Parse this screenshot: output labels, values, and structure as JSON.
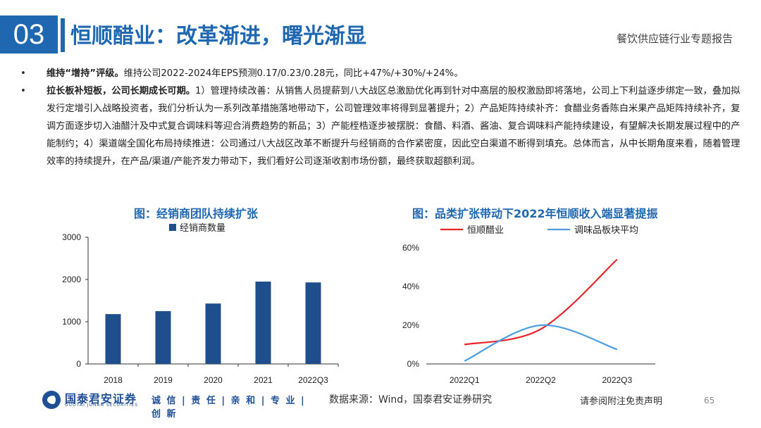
{
  "header": {
    "section_number": "03",
    "title": "恒顺醋业：改革渐进，曙光渐显",
    "report_name": "餐饮供应链行业专题报告"
  },
  "bullets": [
    {
      "lead": "维持“增持”评级。",
      "text": "维持公司2022-2024年EPS预测0.17/0.23/0.28元，同比+47%/+30%/+24%。"
    },
    {
      "lead": "拉长板补短板，公司长期成长可期。",
      "text": "1）管理持续改善：从销售人员提薪到八大战区总激励优化再到针对中高层的股权激励即将落地，公司上下利益逐步绑定一致，叠加拟发行定增引入战略投资者，我们分析认为一系列改革措施落地带动下，公司管理效率将得到显著提升；2）产品矩阵持续补齐：食醋业务香陈白米果产品矩阵持续补齐，复调方面逐步切入油醋汁及中式复合调味料等迎合消费趋势的新品；3）产能桎梏逐步被摆脱：食醋、料酒、酱油、复合调味料产能持续建设，有望解决长期发展过程中的产能制约；4）渠道端全国化布局持续推进：公司通过八大战区改革不断提升与经销商的合作紧密度，因此空白渠道不断得到填充。总体而言，从中长期角度来看，随着管理效率的持续提升，在产品/渠道/产能齐发力带动下，我们看好公司逐渐收割市场份额，最终获取超额利润。"
    }
  ],
  "chart_data": [
    {
      "type": "bar",
      "title": "图：经销商团队持续扩张",
      "categories": [
        "2018",
        "2019",
        "2020",
        "2021",
        "2022Q3"
      ],
      "series": [
        {
          "name": "经销商数量",
          "values": [
            1180,
            1250,
            1430,
            1950,
            1930
          ],
          "color": "#1f4e8c"
        }
      ],
      "ylim": [
        0,
        3000
      ],
      "yticks": [
        "0",
        "1000",
        "2000",
        "3000"
      ],
      "grid": false,
      "legend": "top"
    },
    {
      "type": "line",
      "title": "图：品类扩张带动下2022年恒顺收入端显著提振",
      "categories": [
        "2022Q1",
        "2022Q2",
        "2022Q3"
      ],
      "series": [
        {
          "name": "恒顺醋业",
          "values": [
            0.1,
            0.18,
            0.54
          ],
          "color": "#e8262a"
        },
        {
          "name": "调味品板块平均",
          "values": [
            0.015,
            0.2,
            0.075
          ],
          "color": "#4a9de0"
        }
      ],
      "ylim": [
        0,
        0.6
      ],
      "yticks": [
        "0%",
        "20%",
        "40%",
        "60%"
      ],
      "grid": false,
      "legend": "top"
    }
  ],
  "footer": {
    "company_name": "国泰君安证券",
    "company_en": "GUOTAI JUNAN SECURITIES",
    "slogan": "诚 信 | 责 任 | 亲 和 | 专 业 | 创 新",
    "source": "数据来源：Wind，国泰君安证券研究",
    "disclaimer": "请参阅附注免责声明",
    "page_number": "65"
  }
}
